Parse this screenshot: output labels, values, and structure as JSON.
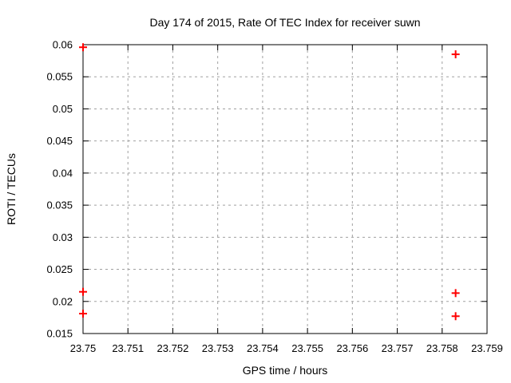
{
  "title": "Day 174 of 2015, Rate Of TEC Index for receiver suwn",
  "colors": {
    "background": "#ffffff",
    "border": "#000000",
    "grid": "#a0a0a0",
    "text": "#000000",
    "marker": "#ff0000"
  },
  "chart_data": {
    "type": "scatter",
    "title": "Day 174 of 2015, Rate Of TEC Index for receiver suwn",
    "xlabel": "GPS time / hours",
    "ylabel": "ROTI / TECUs",
    "xlim": [
      23.75,
      23.759
    ],
    "ylim": [
      0.015,
      0.06
    ],
    "grid": true,
    "legend": "none",
    "xticks": [
      {
        "v": 23.75,
        "label": "23.75"
      },
      {
        "v": 23.751,
        "label": "23.751"
      },
      {
        "v": 23.752,
        "label": "23.752"
      },
      {
        "v": 23.753,
        "label": "23.753"
      },
      {
        "v": 23.754,
        "label": "23.754"
      },
      {
        "v": 23.755,
        "label": "23.755"
      },
      {
        "v": 23.756,
        "label": "23.756"
      },
      {
        "v": 23.757,
        "label": "23.757"
      },
      {
        "v": 23.758,
        "label": "23.758"
      },
      {
        "v": 23.759,
        "label": "23.759"
      }
    ],
    "yticks": [
      {
        "v": 0.015,
        "label": "0.015"
      },
      {
        "v": 0.02,
        "label": "0.02"
      },
      {
        "v": 0.025,
        "label": "0.025"
      },
      {
        "v": 0.03,
        "label": "0.03"
      },
      {
        "v": 0.035,
        "label": "0.035"
      },
      {
        "v": 0.04,
        "label": "0.04"
      },
      {
        "v": 0.045,
        "label": "0.045"
      },
      {
        "v": 0.05,
        "label": "0.05"
      },
      {
        "v": 0.055,
        "label": "0.055"
      },
      {
        "v": 0.06,
        "label": "0.06"
      }
    ],
    "series": [
      {
        "name": "ROTI",
        "marker": "plus",
        "color": "#ff0000",
        "points": [
          {
            "x": 23.75,
            "y": 0.0596
          },
          {
            "x": 23.75,
            "y": 0.0215
          },
          {
            "x": 23.75,
            "y": 0.0181
          },
          {
            "x": 23.7583,
            "y": 0.0585
          },
          {
            "x": 23.7583,
            "y": 0.0213
          },
          {
            "x": 23.7583,
            "y": 0.0177
          }
        ]
      }
    ]
  }
}
